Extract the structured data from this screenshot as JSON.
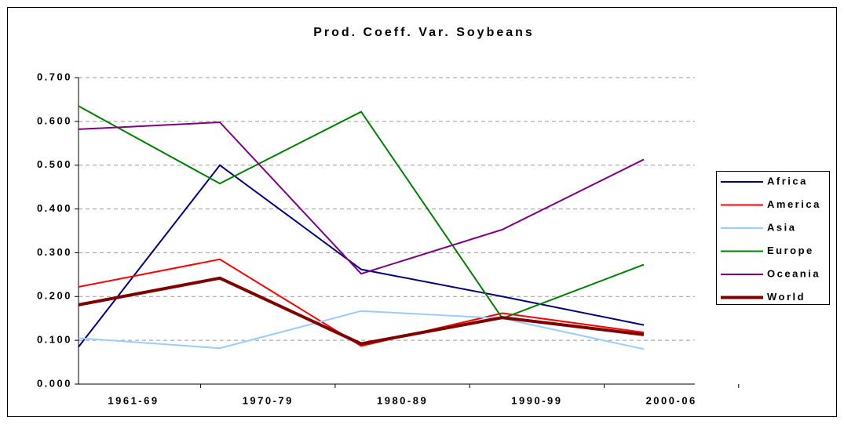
{
  "chart_data": {
    "type": "line",
    "title": "Prod. Coeff. Var. Soybeans",
    "categories": [
      "1961-69",
      "1970-79",
      "1980-89",
      "1990-99",
      "2000-06"
    ],
    "series": [
      {
        "name": "Africa",
        "color": "#000080",
        "values": [
          0.085,
          0.5,
          0.262,
          0.2,
          0.135
        ]
      },
      {
        "name": "America",
        "color": "#ff0000",
        "values": [
          0.222,
          0.285,
          0.087,
          0.162,
          0.118
        ]
      },
      {
        "name": "Asia",
        "color": "#99ccff",
        "values": [
          0.105,
          0.082,
          0.167,
          0.15,
          0.08
        ]
      },
      {
        "name": "Europe",
        "color": "#008000",
        "values": [
          0.635,
          0.458,
          0.622,
          0.15,
          0.273
        ]
      },
      {
        "name": "Oceania",
        "color": "#800080",
        "values": [
          0.582,
          0.598,
          0.252,
          0.353,
          0.513
        ]
      },
      {
        "name": "World",
        "color": "#800000",
        "values": [
          0.181,
          0.242,
          0.092,
          0.152,
          0.113
        ]
      }
    ],
    "ylim": [
      0,
      0.7
    ],
    "yticks": [
      {
        "value": 0,
        "label": "0.000"
      },
      {
        "value": 0.1,
        "label": "0.100"
      },
      {
        "value": 0.2,
        "label": "0.200"
      },
      {
        "value": 0.3,
        "label": "0.300"
      },
      {
        "value": 0.4,
        "label": "0.400"
      },
      {
        "value": 0.5,
        "label": "0.500"
      },
      {
        "value": 0.6,
        "label": "0.600"
      },
      {
        "value": 0.7,
        "label": "0.700"
      }
    ],
    "grid": true,
    "legend": "right"
  }
}
